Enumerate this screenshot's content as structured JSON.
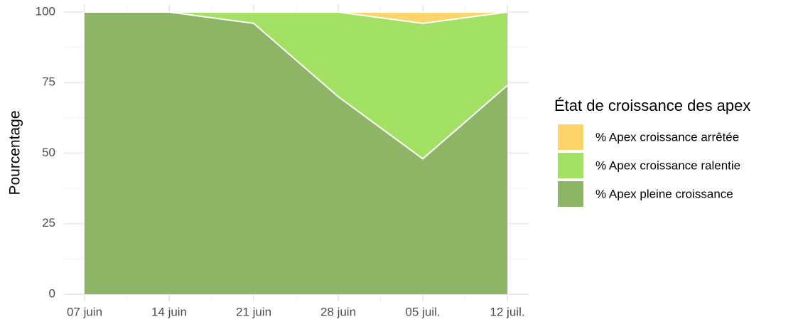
{
  "chart_data": {
    "type": "area",
    "stacked": true,
    "y_label": "Pourcentage",
    "legend_title": "État de croissance des apex",
    "categories": [
      "07 juin",
      "14 juin",
      "21 juin",
      "28 juin",
      "05 juil.",
      "12 juil."
    ],
    "series": [
      {
        "name": "% Apex pleine croissance",
        "color": "#8db565",
        "values": [
          100,
          100,
          96,
          70,
          48,
          74
        ]
      },
      {
        "name": "% Apex croissance ralentie",
        "color": "#a3e165",
        "values": [
          0,
          0,
          4,
          30,
          48,
          26
        ]
      },
      {
        "name": "% Apex croissance arrêtée",
        "color": "#fdd36c",
        "values": [
          0,
          0,
          0,
          0,
          4,
          0
        ]
      }
    ],
    "ylim": [
      0,
      100
    ],
    "yticks": [
      0,
      25,
      50,
      75,
      100
    ],
    "grid": true,
    "legend": "right"
  }
}
